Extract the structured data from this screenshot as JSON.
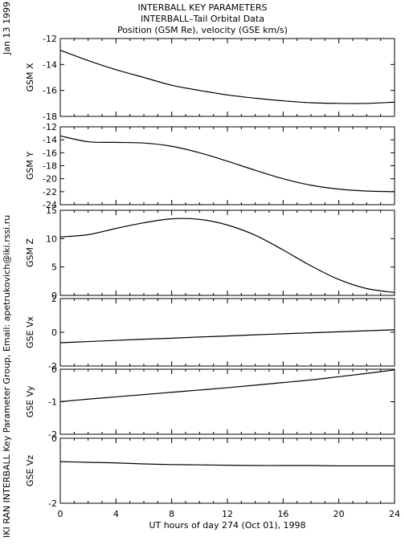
{
  "header": {
    "title_lines": [
      "INTERBALL KEY PARAMETERS",
      "INTERBALL–Tail Orbital Data",
      "Position (GSM Re), velocity (GSE km/s)"
    ]
  },
  "margin": {
    "date": "Jan 13 1999",
    "credit": "IKI RAN INTERBALL Key Parameter Group, Email: apetrukovich@iki.rssi.ru"
  },
  "chart_data": {
    "type": "line",
    "x": [
      0,
      2,
      4,
      6,
      8,
      10,
      12,
      14,
      16,
      18,
      20,
      22,
      24
    ],
    "xlim": [
      0,
      24
    ],
    "xticks": [
      "0",
      "4",
      "8",
      "12",
      "16",
      "20",
      "24"
    ],
    "xlabel": "UT hours of day 274 (Oct 01), 1998",
    "panels": [
      {
        "ylabel": "GSM X",
        "ylim": [
          -18,
          -12
        ],
        "yticks": [
          "-12",
          "-14",
          "-16",
          "-18"
        ],
        "values": [
          -12.9,
          -13.7,
          -14.4,
          -15.0,
          -15.6,
          -16.0,
          -16.35,
          -16.6,
          -16.8,
          -16.95,
          -17.0,
          -17.0,
          -16.9
        ]
      },
      {
        "ylabel": "GSM Y",
        "ylim": [
          -24,
          -12
        ],
        "yticks": [
          "-12",
          "-14",
          "-16",
          "-18",
          "-20",
          "-22",
          "-24"
        ],
        "values": [
          -13.4,
          -14.3,
          -14.4,
          -14.5,
          -15.0,
          -16.0,
          -17.3,
          -18.7,
          -20.0,
          -21.0,
          -21.6,
          -21.9,
          -22.0
        ]
      },
      {
        "ylabel": "GSM Z",
        "ylim": [
          0,
          15
        ],
        "yticks": [
          "15",
          "10",
          "5",
          "0"
        ],
        "values": [
          10.3,
          10.7,
          11.8,
          12.8,
          13.5,
          13.4,
          12.4,
          10.6,
          8.0,
          5.2,
          2.8,
          1.2,
          0.5
        ]
      },
      {
        "ylabel": "GSE Vx",
        "ylim": [
          -2,
          2
        ],
        "yticks": [
          "2",
          "0",
          "-2"
        ],
        "values": [
          -0.62,
          -0.55,
          -0.48,
          -0.41,
          -0.35,
          -0.28,
          -0.22,
          -0.15,
          -0.09,
          -0.03,
          0.03,
          0.09,
          0.15
        ]
      },
      {
        "ylabel": "GSE Vy",
        "ylim": [
          -2,
          0
        ],
        "yticks": [
          "0",
          "-1",
          "-2"
        ],
        "values": [
          -1.0,
          -0.92,
          -0.85,
          -0.78,
          -0.71,
          -0.64,
          -0.57,
          -0.49,
          -0.41,
          -0.33,
          -0.23,
          -0.13,
          -0.02
        ]
      },
      {
        "ylabel": "GSE Vz",
        "ylim": [
          -2,
          0
        ],
        "yticks": [
          "0",
          "-2"
        ],
        "values": [
          -0.72,
          -0.74,
          -0.76,
          -0.79,
          -0.81,
          -0.82,
          -0.83,
          -0.84,
          -0.84,
          -0.84,
          -0.85,
          -0.85,
          -0.85
        ]
      }
    ]
  }
}
